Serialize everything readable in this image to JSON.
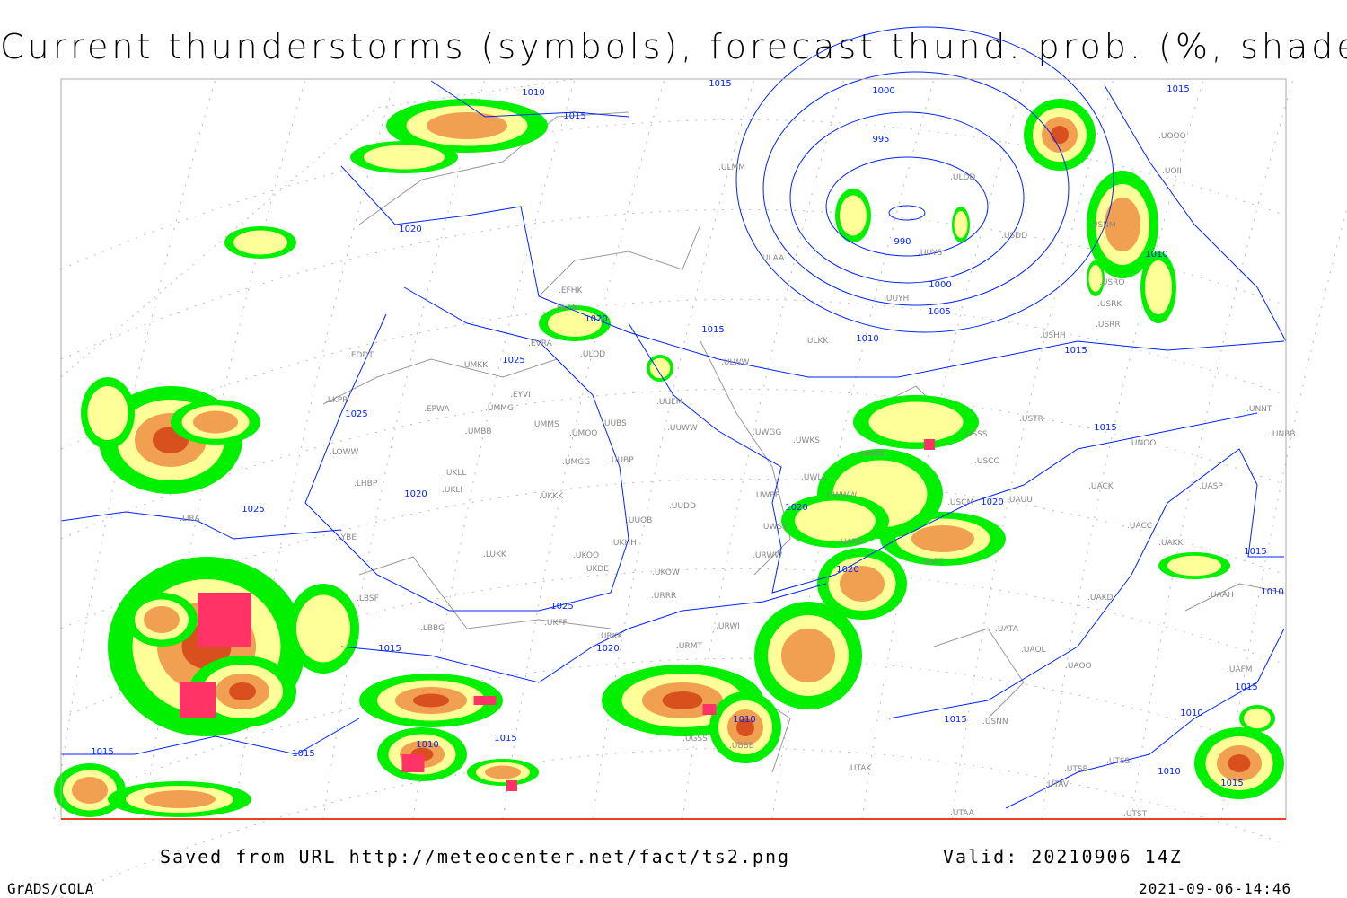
{
  "title": "Current thunderstorms (symbols), forecast thund. prob. (%, shaded)",
  "footer": {
    "saved_from": "Saved from URL http://meteocenter.net/fact/ts2.png",
    "valid": "Valid: 20210906 14Z",
    "software": "GrADS/COLA",
    "timestamp": "2021-09-06-14:46"
  },
  "colors": {
    "prob_low": "#00f000",
    "prob_mid": "#ffff99",
    "prob_high": "#f0a050",
    "prob_very_high": "#d8501e",
    "thunderstorm_symbol": "#ff3366",
    "isobar": "#0022ff",
    "coast": "#999999"
  },
  "isobar_labels": [
    "1010",
    "1015",
    "1015",
    "1000",
    "995",
    "1015",
    "1020",
    "990",
    "1000",
    "1005",
    "1010",
    "1015",
    "1010",
    "1015",
    "1020",
    "1025",
    "1025",
    "1015",
    "1020",
    "1025",
    "1020",
    "1020",
    "1020",
    "1015",
    "1010",
    "1025",
    "1020",
    "1015",
    "1015",
    "1010",
    "1015",
    "1010",
    "1015",
    "1015",
    "1015",
    "1010",
    "1010",
    "1015"
  ],
  "stations": [
    "ULMM",
    "ULDD",
    "USDD",
    "UUYS",
    "UUYH",
    "ULAA",
    "ULKK",
    "ULWW",
    "EFHK",
    "EETN",
    "EVRA",
    "ULOD",
    "UMKK",
    "EYVI",
    "EDDT",
    "EPWA",
    "UMMG",
    "LKPR",
    "UMBB",
    "UMMS",
    "UMOO",
    "UUBS",
    "UUEM",
    "UUWW",
    "UWGG",
    "UWKS",
    "LOWW",
    "LHBP",
    "UKLL",
    "UKLI",
    "UMGG",
    "UUBP",
    "UKKK",
    "UUDD",
    "UUOB",
    "UWPP",
    "UWKE",
    "UWLL",
    "UWWW",
    "UWSS",
    "USCM",
    "UATT",
    "UARR",
    "URWW",
    "URWI",
    "UKOO",
    "UKHH",
    "UKDE",
    "UKFF",
    "URKK",
    "URMT",
    "URRR",
    "UKOW",
    "LBSF",
    "LYBE",
    "LUKK",
    "LBBG",
    "LIRA",
    "UGSS",
    "UBBB",
    "UTAK",
    "USSS",
    "USCC",
    "USTR",
    "UNOO",
    "UAUU",
    "UACK",
    "UACC",
    "UAKK",
    "UASP",
    "UNNT",
    "UNBB",
    "UATA",
    "UAOL",
    "UAOO",
    "UAKD",
    "UAAH",
    "UAFM",
    "UTSS",
    "UTSB",
    "UTAV",
    "UTAA",
    "UTST",
    "USNN",
    "USRK",
    "USRR",
    "USHH",
    "USRO",
    "UOOO",
    "UOII",
    "USNM"
  ]
}
